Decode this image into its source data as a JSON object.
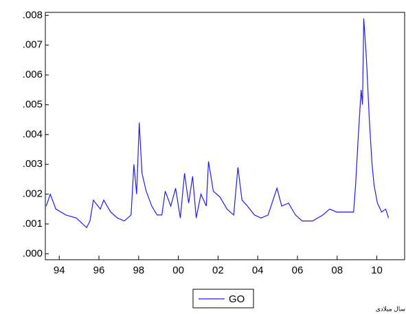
{
  "chart_data": {
    "type": "line",
    "x": [
      1993.34,
      1993.55,
      1993.83,
      1994.34,
      1994.86,
      1995.38,
      1995.55,
      1995.72,
      1996.07,
      1996.24,
      1996.59,
      1996.93,
      1997.28,
      1997.62,
      1997.76,
      1997.9,
      1998.03,
      1998.17,
      1998.38,
      1998.66,
      1998.93,
      1999.17,
      1999.34,
      1999.62,
      1999.86,
      2000.1,
      2000.31,
      2000.52,
      2000.72,
      2000.9,
      2001.14,
      2001.41,
      2001.52,
      2001.76,
      2002.1,
      2002.45,
      2002.79,
      2003.0,
      2003.21,
      2003.48,
      2003.83,
      2004.17,
      2004.52,
      2004.97,
      2005.21,
      2005.55,
      2005.9,
      2006.24,
      2006.76,
      2007.28,
      2007.62,
      2007.97,
      2008.48,
      2008.83,
      2008.93,
      2009.07,
      2009.21,
      2009.28,
      2009.34,
      2009.48,
      2009.62,
      2009.76,
      2009.86,
      2010.03,
      2010.24,
      2010.45,
      2010.59
    ],
    "series": [
      {
        "name": "GO",
        "color": "#1a1aff",
        "values": [
          0.0016,
          0.002,
          0.0015,
          0.0013,
          0.0012,
          0.00088,
          0.0011,
          0.0018,
          0.0015,
          0.0018,
          0.0014,
          0.0012,
          0.0011,
          0.0013,
          0.003,
          0.002,
          0.0044,
          0.0027,
          0.0021,
          0.0016,
          0.0013,
          0.0013,
          0.0021,
          0.0016,
          0.0022,
          0.0012,
          0.0027,
          0.0017,
          0.0026,
          0.0012,
          0.002,
          0.0016,
          0.0031,
          0.0021,
          0.0019,
          0.0015,
          0.0013,
          0.0029,
          0.0018,
          0.0016,
          0.0013,
          0.0012,
          0.0013,
          0.0022,
          0.0016,
          0.0017,
          0.0013,
          0.0011,
          0.0011,
          0.0013,
          0.0015,
          0.0014,
          0.0014,
          0.0014,
          0.0023,
          0.004,
          0.0055,
          0.005,
          0.0079,
          0.0065,
          0.0045,
          0.003,
          0.0023,
          0.0017,
          0.0014,
          0.0015,
          0.0012
        ]
      }
    ],
    "xlim": [
      1993.3,
      2011.4
    ],
    "xticks": [
      {
        "value": 1994,
        "label": "94"
      },
      {
        "value": 1996,
        "label": "96"
      },
      {
        "value": 1998,
        "label": "98"
      },
      {
        "value": 2000,
        "label": "00"
      },
      {
        "value": 2002,
        "label": "02"
      },
      {
        "value": 2004,
        "label": "04"
      },
      {
        "value": 2006,
        "label": "06"
      },
      {
        "value": 2008,
        "label": "08"
      },
      {
        "value": 2010,
        "label": "10"
      }
    ],
    "ylim": [
      -0.0002,
      0.0081
    ],
    "yticks": [
      {
        "value": 0,
        "label": ".000"
      },
      {
        "value": 0.001,
        "label": ".001"
      },
      {
        "value": 0.002,
        "label": ".002"
      },
      {
        "value": 0.003,
        "label": ".003"
      },
      {
        "value": 0.004,
        "label": ".004"
      },
      {
        "value": 0.005,
        "label": ".005"
      },
      {
        "value": 0.006,
        "label": ".006"
      },
      {
        "value": 0.007,
        "label": ".007"
      },
      {
        "value": 0.008,
        "label": ".008"
      }
    ],
    "x_label": "سال میلادی",
    "legend": "bottom"
  }
}
